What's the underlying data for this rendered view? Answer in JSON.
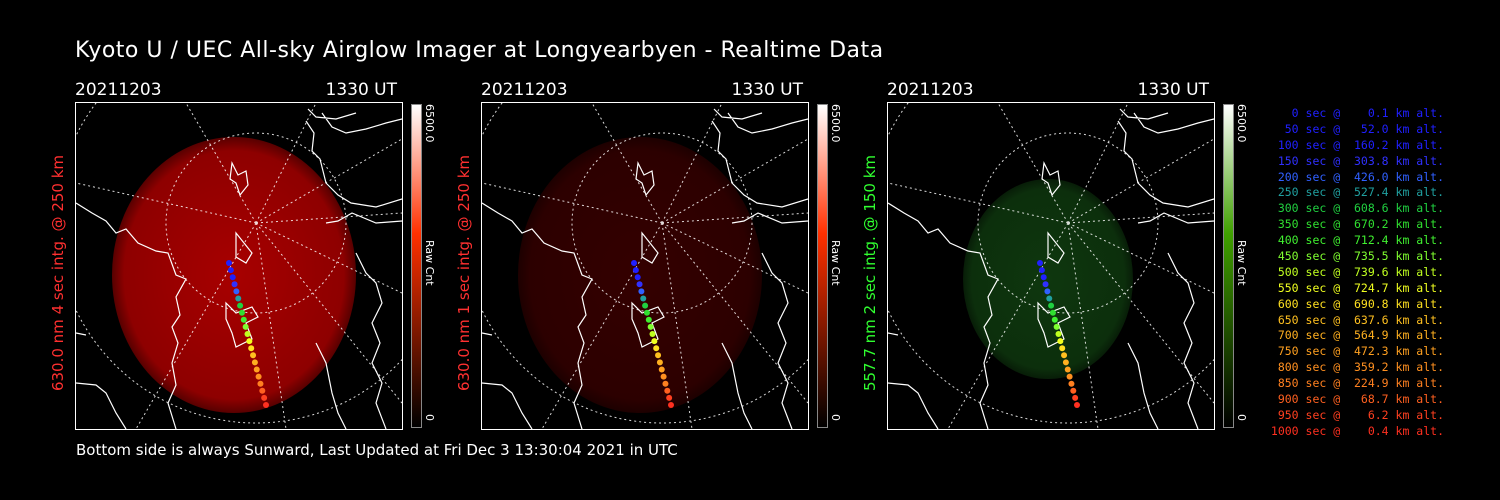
{
  "title": "Kyoto U / UEC All-sky Airglow Imager at Longyearbyen - Realtime Data",
  "footer": "Bottom side is always Sunward, Last Updated at Fri Dec  3 13:30:04 2021 in UTC",
  "panels": [
    {
      "date": "20211203",
      "time": "1330 UT",
      "ylabel": "630.0 nm 4 sec intg. @ 250 km",
      "label_color": "#ff3030",
      "cbar_max": "6500.0",
      "cbar_unit": "Raw Cnt",
      "cbar_min": "0",
      "cbar_color": "#ff3000",
      "glow_color": "#b00000",
      "glow_opacity": 0.95
    },
    {
      "date": "20211203",
      "time": "1330 UT",
      "ylabel": "630.0 nm 1 sec intg. @ 250 km",
      "label_color": "#ff3030",
      "cbar_max": "6500.0",
      "cbar_unit": "Raw Cnt",
      "cbar_min": "0",
      "cbar_color": "#ff3000",
      "glow_color": "#3a0000",
      "glow_opacity": 0.9
    },
    {
      "date": "20211203",
      "time": "1330 UT",
      "ylabel": "557.7 nm 2 sec intg. @ 150 km",
      "label_color": "#30ff30",
      "cbar_max": "6500.0",
      "cbar_unit": "Raw Cnt",
      "cbar_min": "0",
      "cbar_color": "#40a000",
      "glow_color": "#0f3a0f",
      "glow_opacity": 0.95
    }
  ],
  "legend": [
    {
      "text": "   0 sec @    0.1 km alt.",
      "color": "#2020ff"
    },
    {
      "text": "  50 sec @   52.0 km alt.",
      "color": "#2020ff"
    },
    {
      "text": " 100 sec @  160.2 km alt.",
      "color": "#2020ff"
    },
    {
      "text": " 150 sec @  303.8 km alt.",
      "color": "#3030ff"
    },
    {
      "text": " 200 sec @  426.0 km alt.",
      "color": "#3060ff"
    },
    {
      "text": " 250 sec @  527.4 km alt.",
      "color": "#20a0a0"
    },
    {
      "text": " 300 sec @  608.6 km alt.",
      "color": "#20d040"
    },
    {
      "text": " 350 sec @  670.2 km alt.",
      "color": "#30e030"
    },
    {
      "text": " 400 sec @  712.4 km alt.",
      "color": "#40f030"
    },
    {
      "text": " 450 sec @  735.5 km alt.",
      "color": "#80ff30"
    },
    {
      "text": " 500 sec @  739.6 km alt.",
      "color": "#c0ff20"
    },
    {
      "text": " 550 sec @  724.7 km alt.",
      "color": "#f0ff20"
    },
    {
      "text": " 600 sec @  690.8 km alt.",
      "color": "#ffe020"
    },
    {
      "text": " 650 sec @  637.6 km alt.",
      "color": "#ffc020"
    },
    {
      "text": " 700 sec @  564.9 km alt.",
      "color": "#ffb020"
    },
    {
      "text": " 750 sec @  472.3 km alt.",
      "color": "#ffa020"
    },
    {
      "text": " 800 sec @  359.2 km alt.",
      "color": "#ff9020"
    },
    {
      "text": " 850 sec @  224.9 km alt.",
      "color": "#ff8020"
    },
    {
      "text": " 900 sec @   68.7 km alt.",
      "color": "#ff6020"
    },
    {
      "text": " 950 sec @    6.2 km alt.",
      "color": "#ff4020"
    },
    {
      "text": "1000 sec @    0.4 km alt.",
      "color": "#ff3020"
    }
  ]
}
